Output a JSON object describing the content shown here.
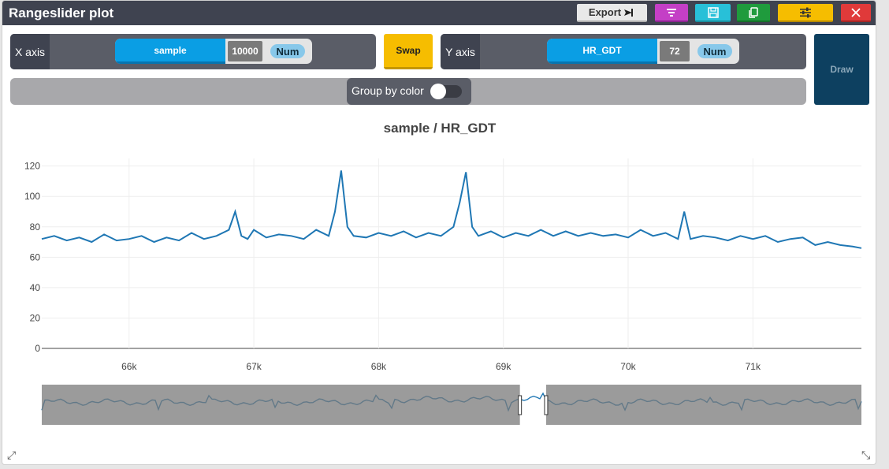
{
  "window": {
    "title": "Rangeslider plot",
    "toolbar": {
      "export_label": "Export",
      "icons": [
        "filter-icon",
        "save-icon",
        "copy-icon",
        "settings-sliders-icon",
        "close-icon"
      ]
    }
  },
  "x_axis": {
    "label": "X axis",
    "field": "sample",
    "count": "10000",
    "type": "Num"
  },
  "swap_label": "Swap",
  "y_axis": {
    "label": "Y axis",
    "field": "HR_GDT",
    "count": "72",
    "type": "Num"
  },
  "draw_label": "Draw",
  "group_by_color": {
    "label": "Group by color",
    "enabled": false
  },
  "chart_data": {
    "type": "line",
    "title": "sample / HR_GDT",
    "x_ticks": [
      "66k",
      "67k",
      "68k",
      "69k",
      "70k",
      "71k"
    ],
    "y_ticks": [
      "0",
      "20",
      "40",
      "60",
      "80",
      "100",
      "120"
    ],
    "xlim": [
      65300,
      71870
    ],
    "ylim": [
      0,
      125
    ],
    "series": [
      {
        "x": [
          65300,
          65400,
          65500,
          65600,
          65700,
          65800,
          65900,
          66000,
          66100,
          66200,
          66300,
          66400,
          66500,
          66600,
          66700,
          66800,
          66850,
          66900,
          66950,
          67000,
          67100,
          67200,
          67300,
          67400,
          67500,
          67600,
          67650,
          67700,
          67750,
          67800,
          67900,
          68000,
          68100,
          68200,
          68300,
          68400,
          68500,
          68600,
          68650,
          68700,
          68750,
          68800,
          68900,
          69000,
          69100,
          69200,
          69300,
          69400,
          69500,
          69600,
          69700,
          69800,
          69900,
          70000,
          70100,
          70200,
          70300,
          70400,
          70450,
          70500,
          70600,
          70700,
          70800,
          70900,
          71000,
          71100,
          71200,
          71300,
          71400,
          71500,
          71600,
          71700,
          71800,
          71870
        ],
        "y": [
          72,
          74,
          71,
          73,
          70,
          75,
          71,
          72,
          74,
          70,
          73,
          71,
          76,
          72,
          74,
          78,
          90,
          74,
          72,
          78,
          73,
          75,
          74,
          72,
          78,
          74,
          90,
          117,
          80,
          74,
          73,
          76,
          74,
          77,
          73,
          76,
          74,
          80,
          96,
          116,
          80,
          74,
          77,
          73,
          76,
          74,
          78,
          74,
          77,
          74,
          76,
          74,
          75,
          73,
          78,
          74,
          76,
          72,
          90,
          72,
          74,
          73,
          71,
          74,
          72,
          74,
          70,
          72,
          73,
          68,
          70,
          68,
          67,
          66
        ]
      }
    ],
    "rangeslider": {
      "selected_range": [
        68750,
        69230
      ],
      "full_range": [
        60000,
        75000
      ]
    }
  },
  "colors": {
    "titlebar": "#3f4350",
    "line": "#1f77b4",
    "rangeslider_line": "#1a4f7a",
    "rangeslider_shade": "#9e9e9e"
  }
}
